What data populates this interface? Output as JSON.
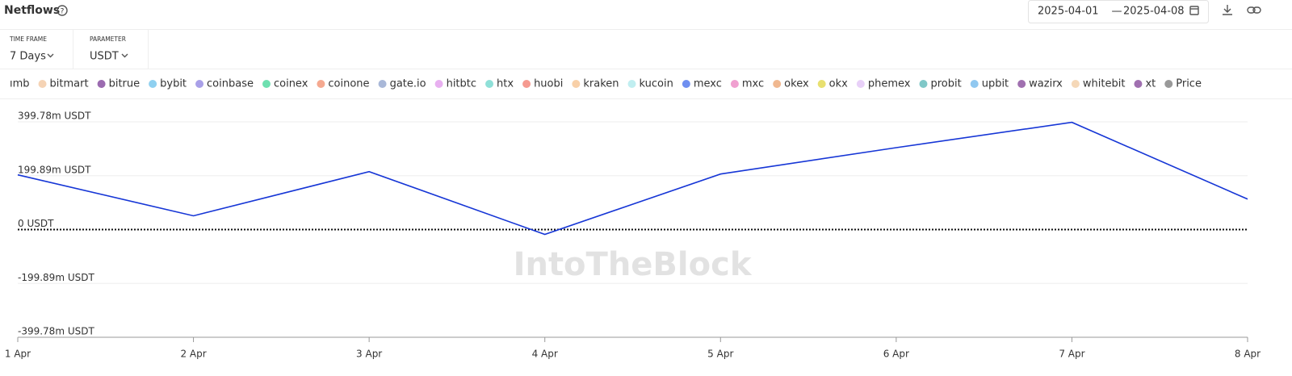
{
  "header": {
    "title": "Netflows",
    "date_from": "2025-04-01",
    "date_separator": "—",
    "date_to": "2025-04-08"
  },
  "controls": [
    {
      "label": "TIME FRAME",
      "value": "7 Days"
    },
    {
      "label": "PARAMETER",
      "value": "USDT"
    }
  ],
  "watermark": "IntoTheBlock",
  "chart_data": {
    "type": "line",
    "legend": [
      {
        "name": "ımb",
        "color": "#f5d3b5"
      },
      {
        "name": "bitmart",
        "color": "#f5d3b5"
      },
      {
        "name": "bitrue",
        "color": "#9b6bb0"
      },
      {
        "name": "bybit",
        "color": "#8fd0f0"
      },
      {
        "name": "coinbase",
        "color": "#a9a0e8"
      },
      {
        "name": "coinex",
        "color": "#6ee0b0"
      },
      {
        "name": "coinone",
        "color": "#f5a990"
      },
      {
        "name": "gate.io",
        "color": "#a9b8d8"
      },
      {
        "name": "hitbtc",
        "color": "#e8b0f0"
      },
      {
        "name": "htx",
        "color": "#8fe0d8"
      },
      {
        "name": "huobi",
        "color": "#f59a90"
      },
      {
        "name": "kraken",
        "color": "#f8d0a8"
      },
      {
        "name": "kucoin",
        "color": "#c0eef0"
      },
      {
        "name": "mexc",
        "color": "#6f8ff0"
      },
      {
        "name": "mxc",
        "color": "#f0a0d0"
      },
      {
        "name": "okex",
        "color": "#f0b890"
      },
      {
        "name": "okx",
        "color": "#e8e070"
      },
      {
        "name": "phemex",
        "color": "#e8d0f8"
      },
      {
        "name": "probit",
        "color": "#80c8c8"
      },
      {
        "name": "upbit",
        "color": "#90c8f0"
      },
      {
        "name": "wazirx",
        "color": "#a070b0"
      },
      {
        "name": "whitebit",
        "color": "#f5d8b8"
      },
      {
        "name": "xt",
        "color": "#a070b0"
      },
      {
        "name": "Price",
        "color": "#999999"
      }
    ],
    "categories": [
      "1 Apr",
      "2 Apr",
      "3 Apr",
      "4 Apr",
      "5 Apr",
      "6 Apr",
      "7 Apr",
      "8 Apr"
    ],
    "series": [
      {
        "color": "#1636d6",
        "values": [
          203,
          51,
          215,
          -18,
          206,
          304,
          398,
          113
        ]
      }
    ],
    "ylim": [
      -399.78,
      399.78
    ],
    "yticks": [
      {
        "value": -399.78,
        "label": "-399.78m USDT"
      },
      {
        "value": -199.89,
        "label": "-199.89m USDT"
      },
      {
        "value": 0,
        "label": "0 USDT"
      },
      {
        "value": 199.89,
        "label": "199.89m USDT"
      },
      {
        "value": 399.78,
        "label": "399.78m USDT"
      }
    ],
    "grid": true
  }
}
